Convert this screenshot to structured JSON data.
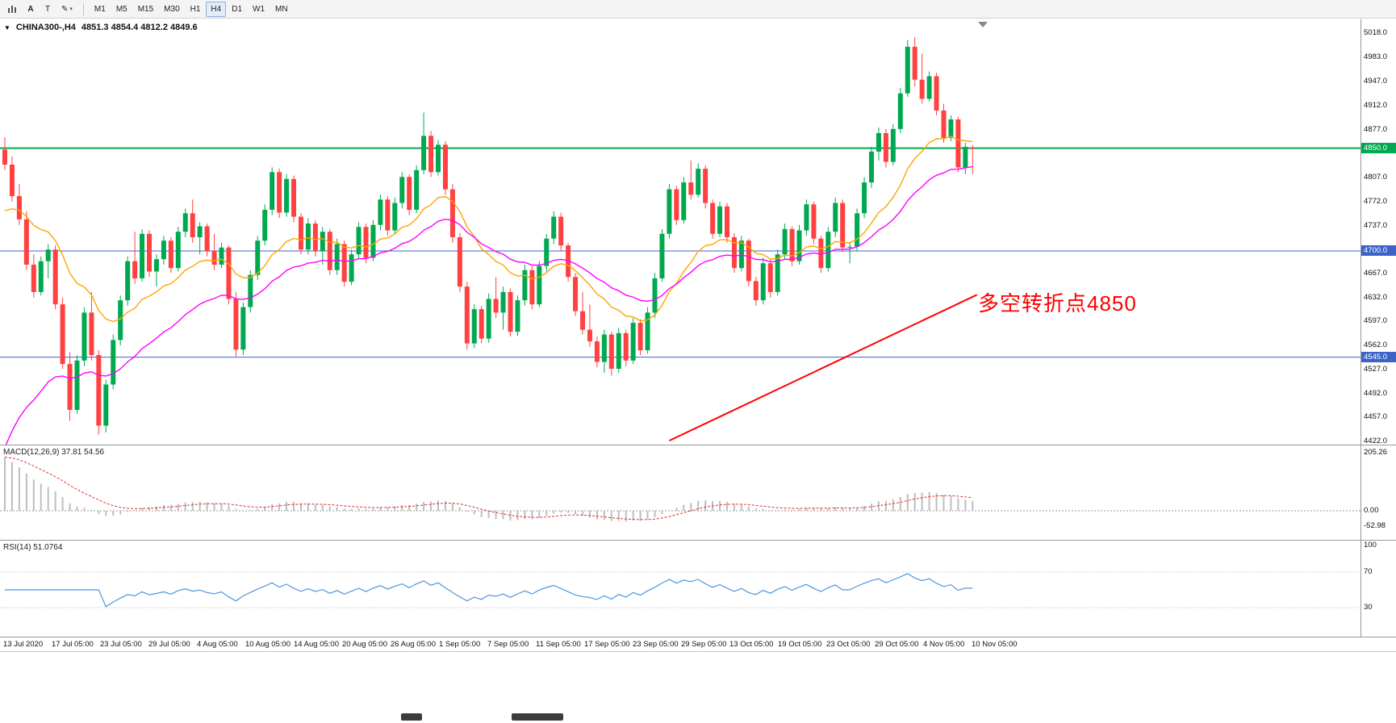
{
  "toolbar": {
    "text_tool_label": "A",
    "type_tool_label": "T",
    "timeframes": [
      "M1",
      "M5",
      "M15",
      "M30",
      "H1",
      "H4",
      "D1",
      "W1",
      "MN"
    ],
    "active_timeframe": "H4"
  },
  "chart_header": {
    "symbol_text": "CHINA300-,H4",
    "ohlc_text": "4851.3 4854.4 4812.2 4849.6"
  },
  "chart_data": {
    "type": "candlestick",
    "symbol": "CHINA300-",
    "timeframe": "H4",
    "ylim": [
      4422,
      5018
    ],
    "y_ticks": [
      5018.0,
      4983.0,
      4947.0,
      4912.0,
      4877.0,
      4807.0,
      4772.0,
      4737.0,
      4667.0,
      4632.0,
      4597.0,
      4562.0,
      4527.0,
      4492.0,
      4457.0,
      4422.0
    ],
    "x_labels": [
      "13 Jul 2020",
      "17 Jul 05:00",
      "23 Jul 05:00",
      "29 Jul 05:00",
      "4 Aug 05:00",
      "10 Aug 05:00",
      "14 Aug 05:00",
      "20 Aug 05:00",
      "26 Aug 05:00",
      "1 Sep 05:00",
      "7 Sep 05:00",
      "11 Sep 05:00",
      "17 Sep 05:00",
      "23 Sep 05:00",
      "29 Sep 05:00",
      "13 Oct 05:00",
      "19 Oct 05:00",
      "23 Oct 05:00",
      "29 Oct 05:00",
      "4 Nov 05:00",
      "10 Nov 05:00"
    ],
    "candle_up_color": "#00A94F",
    "candle_down_color": "#FF4141",
    "ohlc": [
      [
        4848,
        4866,
        4818,
        4826
      ],
      [
        4826,
        4838,
        4772,
        4780
      ],
      [
        4780,
        4798,
        4738,
        4746
      ],
      [
        4746,
        4758,
        4672,
        4680
      ],
      [
        4680,
        4695,
        4632,
        4640
      ],
      [
        4640,
        4692,
        4635,
        4685
      ],
      [
        4685,
        4710,
        4660,
        4702
      ],
      [
        4702,
        4708,
        4615,
        4622
      ],
      [
        4622,
        4632,
        4528,
        4535
      ],
      [
        4535,
        4552,
        4452,
        4468
      ],
      [
        4468,
        4548,
        4462,
        4540
      ],
      [
        4540,
        4618,
        4532,
        4610
      ],
      [
        4610,
        4640,
        4540,
        4548
      ],
      [
        4548,
        4555,
        4432,
        4445
      ],
      [
        4445,
        4512,
        4435,
        4505
      ],
      [
        4505,
        4578,
        4498,
        4570
      ],
      [
        4570,
        4635,
        4562,
        4628
      ],
      [
        4628,
        4692,
        4620,
        4685
      ],
      [
        4685,
        4728,
        4652,
        4660
      ],
      [
        4660,
        4732,
        4655,
        4725
      ],
      [
        4725,
        4730,
        4662,
        4670
      ],
      [
        4670,
        4695,
        4648,
        4688
      ],
      [
        4688,
        4722,
        4680,
        4715
      ],
      [
        4715,
        4720,
        4668,
        4675
      ],
      [
        4675,
        4735,
        4670,
        4728
      ],
      [
        4728,
        4762,
        4720,
        4755
      ],
      [
        4755,
        4775,
        4712,
        4720
      ],
      [
        4720,
        4742,
        4695,
        4736
      ],
      [
        4736,
        4740,
        4692,
        4700
      ],
      [
        4700,
        4725,
        4672,
        4680
      ],
      [
        4680,
        4712,
        4675,
        4705
      ],
      [
        4705,
        4708,
        4622,
        4630
      ],
      [
        4630,
        4640,
        4546,
        4556
      ],
      [
        4556,
        4625,
        4548,
        4618
      ],
      [
        4618,
        4672,
        4610,
        4665
      ],
      [
        4665,
        4722,
        4658,
        4715
      ],
      [
        4715,
        4768,
        4708,
        4760
      ],
      [
        4760,
        4822,
        4752,
        4815
      ],
      [
        4815,
        4820,
        4748,
        4756
      ],
      [
        4756,
        4812,
        4750,
        4805
      ],
      [
        4805,
        4810,
        4742,
        4750
      ],
      [
        4750,
        4755,
        4695,
        4702
      ],
      [
        4702,
        4748,
        4695,
        4740
      ],
      [
        4740,
        4745,
        4692,
        4700
      ],
      [
        4700,
        4735,
        4680,
        4728
      ],
      [
        4728,
        4732,
        4665,
        4672
      ],
      [
        4672,
        4718,
        4665,
        4710
      ],
      [
        4710,
        4715,
        4648,
        4655
      ],
      [
        4655,
        4702,
        4650,
        4695
      ],
      [
        4695,
        4742,
        4688,
        4735
      ],
      [
        4735,
        4740,
        4682,
        4690
      ],
      [
        4690,
        4745,
        4685,
        4738
      ],
      [
        4738,
        4782,
        4730,
        4775
      ],
      [
        4775,
        4780,
        4722,
        4730
      ],
      [
        4730,
        4778,
        4725,
        4770
      ],
      [
        4770,
        4815,
        4762,
        4808
      ],
      [
        4808,
        4812,
        4752,
        4760
      ],
      [
        4760,
        4825,
        4755,
        4818
      ],
      [
        4818,
        4902,
        4812,
        4868
      ],
      [
        4868,
        4875,
        4808,
        4815
      ],
      [
        4815,
        4862,
        4810,
        4855
      ],
      [
        4855,
        4860,
        4782,
        4790
      ],
      [
        4790,
        4798,
        4712,
        4720
      ],
      [
        4720,
        4726,
        4640,
        4648
      ],
      [
        4648,
        4655,
        4556,
        4565
      ],
      [
        4565,
        4622,
        4558,
        4615
      ],
      [
        4615,
        4620,
        4565,
        4572
      ],
      [
        4572,
        4638,
        4566,
        4630
      ],
      [
        4630,
        4662,
        4602,
        4610
      ],
      [
        4610,
        4648,
        4585,
        4640
      ],
      [
        4640,
        4645,
        4575,
        4582
      ],
      [
        4582,
        4635,
        4576,
        4628
      ],
      [
        4628,
        4680,
        4620,
        4672
      ],
      [
        4672,
        4678,
        4615,
        4622
      ],
      [
        4622,
        4685,
        4618,
        4678
      ],
      [
        4678,
        4725,
        4670,
        4718
      ],
      [
        4718,
        4758,
        4710,
        4750
      ],
      [
        4750,
        4756,
        4700,
        4708
      ],
      [
        4708,
        4712,
        4655,
        4662
      ],
      [
        4662,
        4668,
        4605,
        4612
      ],
      [
        4612,
        4640,
        4578,
        4585
      ],
      [
        4585,
        4622,
        4560,
        4568
      ],
      [
        4568,
        4575,
        4530,
        4538
      ],
      [
        4538,
        4585,
        4522,
        4578
      ],
      [
        4578,
        4582,
        4518,
        4528
      ],
      [
        4528,
        4588,
        4522,
        4580
      ],
      [
        4580,
        4585,
        4532,
        4540
      ],
      [
        4540,
        4602,
        4535,
        4595
      ],
      [
        4595,
        4600,
        4548,
        4555
      ],
      [
        4555,
        4618,
        4550,
        4610
      ],
      [
        4610,
        4668,
        4602,
        4660
      ],
      [
        4660,
        4732,
        4655,
        4725
      ],
      [
        4725,
        4798,
        4718,
        4790
      ],
      [
        4790,
        4795,
        4738,
        4745
      ],
      [
        4745,
        4808,
        4740,
        4800
      ],
      [
        4800,
        4832,
        4775,
        4782
      ],
      [
        4782,
        4828,
        4778,
        4820
      ],
      [
        4820,
        4825,
        4762,
        4770
      ],
      [
        4770,
        4775,
        4718,
        4725
      ],
      [
        4725,
        4772,
        4720,
        4765
      ],
      [
        4765,
        4770,
        4712,
        4720
      ],
      [
        4720,
        4726,
        4668,
        4675
      ],
      [
        4675,
        4722,
        4670,
        4715
      ],
      [
        4715,
        4718,
        4648,
        4656
      ],
      [
        4656,
        4662,
        4620,
        4628
      ],
      [
        4628,
        4690,
        4622,
        4682
      ],
      [
        4682,
        4688,
        4632,
        4640
      ],
      [
        4640,
        4702,
        4635,
        4695
      ],
      [
        4695,
        4740,
        4688,
        4732
      ],
      [
        4732,
        4736,
        4678,
        4685
      ],
      [
        4685,
        4738,
        4680,
        4730
      ],
      [
        4730,
        4775,
        4722,
        4768
      ],
      [
        4768,
        4772,
        4710,
        4718
      ],
      [
        4718,
        4722,
        4668,
        4675
      ],
      [
        4675,
        4735,
        4670,
        4728
      ],
      [
        4728,
        4778,
        4720,
        4770
      ],
      [
        4770,
        4775,
        4698,
        4705
      ],
      [
        4705,
        4712,
        4682,
        4706
      ],
      [
        4706,
        4762,
        4700,
        4755
      ],
      [
        4755,
        4808,
        4748,
        4800
      ],
      [
        4800,
        4852,
        4792,
        4845
      ],
      [
        4845,
        4880,
        4832,
        4872
      ],
      [
        4872,
        4878,
        4822,
        4830
      ],
      [
        4830,
        4885,
        4825,
        4878
      ],
      [
        4878,
        4938,
        4872,
        4930
      ],
      [
        4930,
        5008,
        4925,
        4998
      ],
      [
        4998,
        5012,
        4940,
        4950
      ],
      [
        4950,
        4988,
        4915,
        4922
      ],
      [
        4922,
        4962,
        4918,
        4955
      ],
      [
        4955,
        4960,
        4898,
        4905
      ],
      [
        4905,
        4915,
        4858,
        4865
      ],
      [
        4865,
        4898,
        4860,
        4892
      ],
      [
        4892,
        4896,
        4815,
        4822
      ],
      [
        4822,
        4858,
        4812,
        4852
      ],
      [
        4851.3,
        4854.4,
        4812.2,
        4849.6
      ]
    ],
    "horizontal_lines": [
      {
        "price": 4850.0,
        "label": "4850.0",
        "color": "#00A94F",
        "width": 2
      },
      {
        "price": 4700.0,
        "label": "4700.0",
        "color": "#3C64C8",
        "width": 1
      },
      {
        "price": 4545.0,
        "label": "4545.0",
        "color": "#3C64C8",
        "width": 1
      }
    ],
    "trendline": {
      "color": "#FF0000",
      "from": {
        "index": 92,
        "price": 4423
      },
      "to": {
        "index": 134.6,
        "price": 4636
      }
    },
    "annotation": {
      "text": "多空转折点4850",
      "color": "#FF0000"
    },
    "moving_averages": [
      {
        "name": "ma-fast-orange",
        "color": "#FFA500",
        "period": 16,
        "seed": 4750
      },
      {
        "name": "ma-slow-magenta",
        "color": "#FF00FF",
        "period": 30,
        "seed": 4385
      }
    ],
    "indicators": {
      "macd": {
        "label": "MACD(12,26,9)",
        "value_text": "37.81 54.56",
        "axis_values": [
          205.26,
          0,
          -52.98
        ],
        "hist_color": "#BEBEBE",
        "signal_color": "#E03030",
        "fast": 12,
        "slow": 26,
        "signal": 9,
        "initial": 205.26
      },
      "rsi": {
        "label": "RSI(14)",
        "value_text": "51.0764",
        "axis_values": [
          100,
          70,
          30
        ],
        "levels": [
          70,
          30
        ],
        "color": "#4E96DC",
        "period": 14
      }
    }
  }
}
